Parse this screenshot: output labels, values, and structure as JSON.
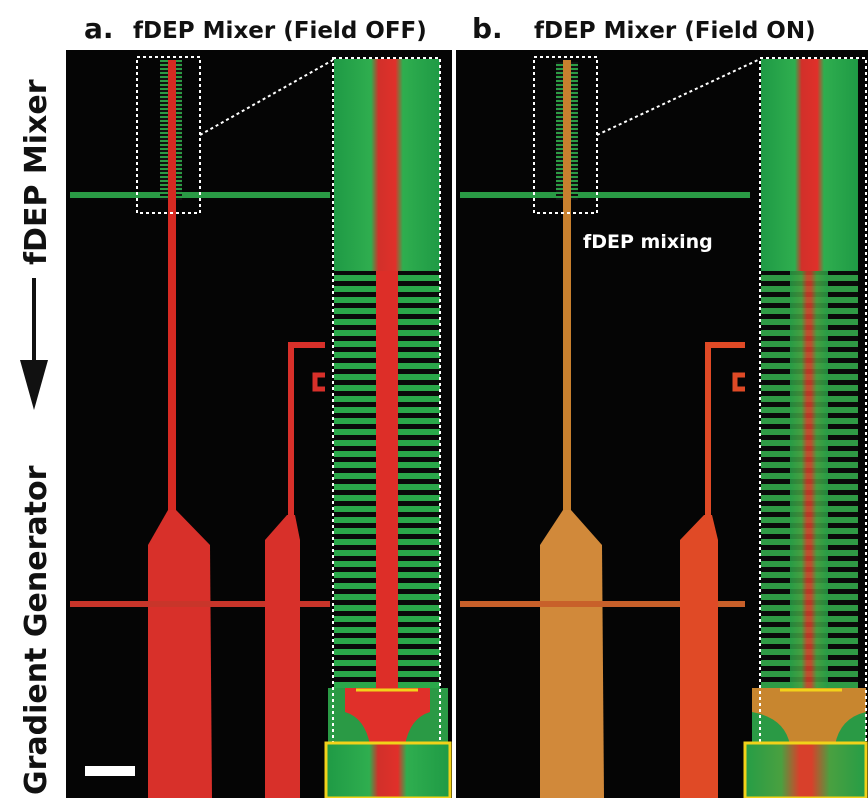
{
  "side_labels": {
    "top": "fDEP Mixer",
    "bottom": "Gradient Generator"
  },
  "panels": [
    {
      "letter": "a.",
      "title": "fDEP Mixer (Field OFF)"
    },
    {
      "letter": "b.",
      "title": "fDEP Mixer (Field ON)",
      "annotation": "fDEP mixing"
    }
  ]
}
